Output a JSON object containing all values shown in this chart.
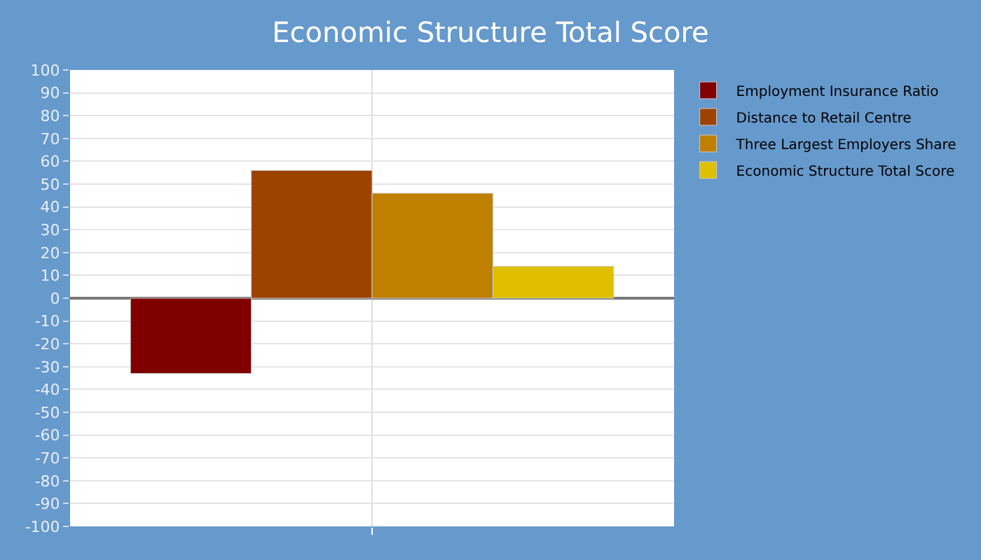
{
  "chart_data": {
    "type": "bar",
    "title": "Economic Structure Total Score",
    "categories": [
      null
    ],
    "series": [
      {
        "name": "Employment Insurance Ratio",
        "color": "#800000",
        "values": [
          -33
        ]
      },
      {
        "name": "Distance to Retail Centre",
        "color": "#9e4200",
        "values": [
          56
        ]
      },
      {
        "name": "Three Largest Employers Share",
        "color": "#bf7f00",
        "values": [
          46
        ]
      },
      {
        "name": "Economic Structure Total Score",
        "color": "#dfbf00",
        "values": [
          14
        ]
      }
    ],
    "ylim": [
      -100,
      100
    ],
    "yticks": [
      -100,
      -90,
      -80,
      -70,
      -60,
      -50,
      -40,
      -30,
      -20,
      -10,
      0,
      10,
      20,
      30,
      40,
      50,
      60,
      70,
      80,
      90,
      100
    ],
    "grid": true,
    "legend": "top right"
  }
}
